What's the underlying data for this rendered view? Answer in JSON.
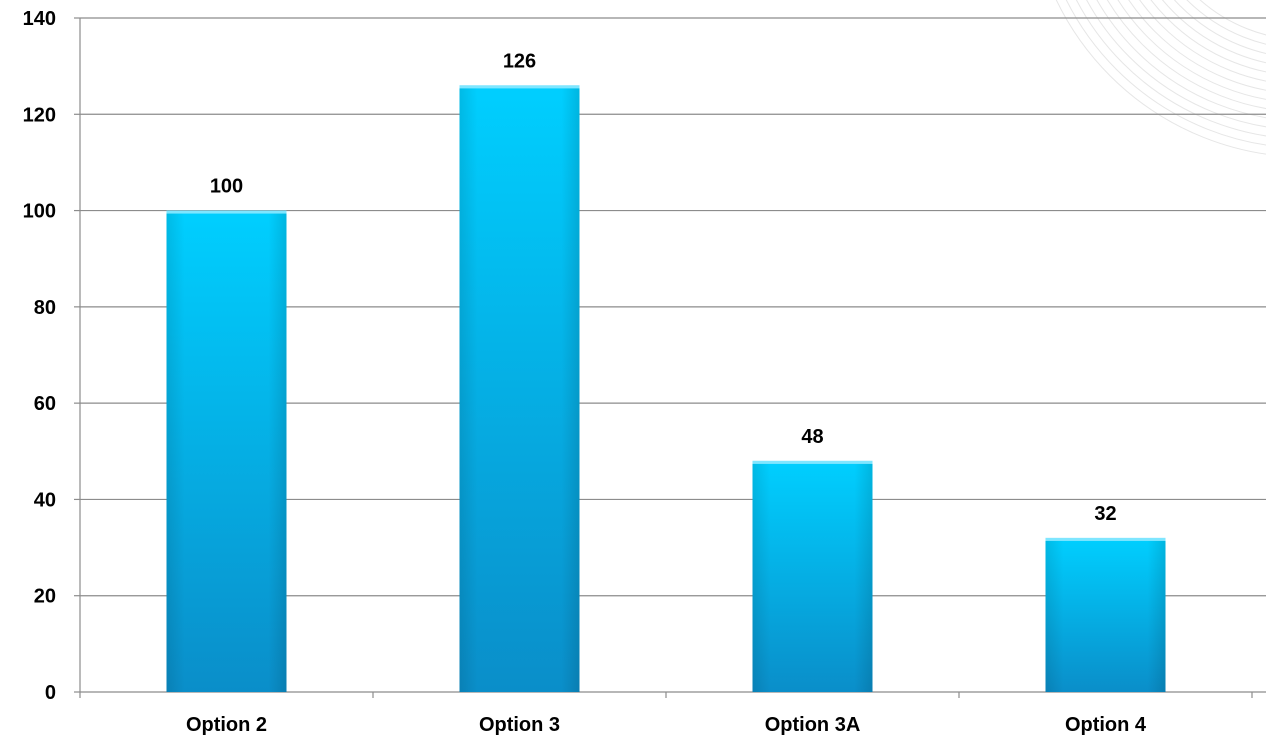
{
  "chart_data": {
    "type": "bar",
    "categories": [
      "Option 2",
      "Option 3",
      "Option 3A",
      "Option 4"
    ],
    "values": [
      100,
      126,
      48,
      32
    ],
    "data_labels": [
      "100",
      "126",
      "48",
      "32"
    ],
    "title": "",
    "xlabel": "",
    "ylabel": "",
    "ylim": [
      0,
      140
    ],
    "yticks": [
      0,
      20,
      40,
      60,
      80,
      100,
      120,
      140
    ],
    "ytick_labels": [
      "0",
      "20",
      "40",
      "60",
      "80",
      "100",
      "120",
      "140"
    ],
    "grid": true,
    "legend": "none",
    "bar_color_top": "#00cfff",
    "bar_color_bottom": "#0a8ec9",
    "gridline_color": "#8c8c8c"
  }
}
